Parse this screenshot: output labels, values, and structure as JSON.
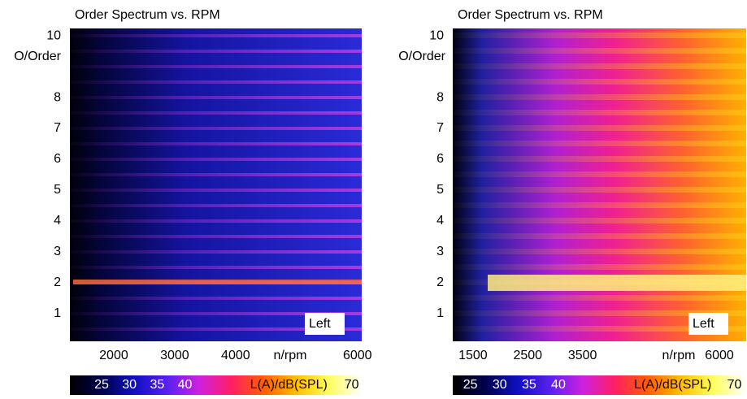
{
  "chart_data": [
    {
      "type": "heatmap",
      "title": "Order Spectrum vs. RPM",
      "ylabel": "O/Order",
      "xlabel": "n/rpm",
      "annotation": "Left",
      "xlim": [
        1280,
        6070
      ],
      "xticks": [
        2000,
        3000,
        4000,
        6000
      ],
      "ylim": [
        0.1,
        10.24
      ],
      "yticks": [
        1,
        2,
        3,
        4,
        5,
        6,
        7,
        8,
        10
      ],
      "colorbar": {
        "label": "L(A)/dB(SPL)",
        "lim": [
          19.3,
          71.8
        ],
        "ticks": [
          25,
          30,
          35,
          40,
          70
        ],
        "colors": [
          "#000000",
          "#000050",
          "#1010c0",
          "#5a20f0",
          "#d020e0",
          "#ff2060",
          "#ff6000",
          "#ffc000",
          "#ffff60",
          "#ffffff"
        ]
      }
    },
    {
      "type": "heatmap",
      "title": "Order Spectrum vs. RPM",
      "ylabel": "O/Order",
      "xlabel": "n/rpm",
      "annotation": "Left",
      "xlim": [
        1130,
        6490
      ],
      "xticks": [
        1500,
        2500,
        3500,
        6000
      ],
      "ylim": [
        0.1,
        10.24
      ],
      "yticks": [
        1,
        2,
        3,
        4,
        5,
        6,
        7,
        8,
        10
      ],
      "colorbar": {
        "label": "L(A)/dB(SPL)",
        "lim": [
          22,
          72
        ],
        "ticks": [
          25,
          30,
          35,
          40,
          70
        ],
        "colors": [
          "#000000",
          "#000050",
          "#1010c0",
          "#5a20f0",
          "#d020e0",
          "#ff2060",
          "#ff6000",
          "#ffc000",
          "#ffff60",
          "#ffffff"
        ]
      }
    }
  ]
}
